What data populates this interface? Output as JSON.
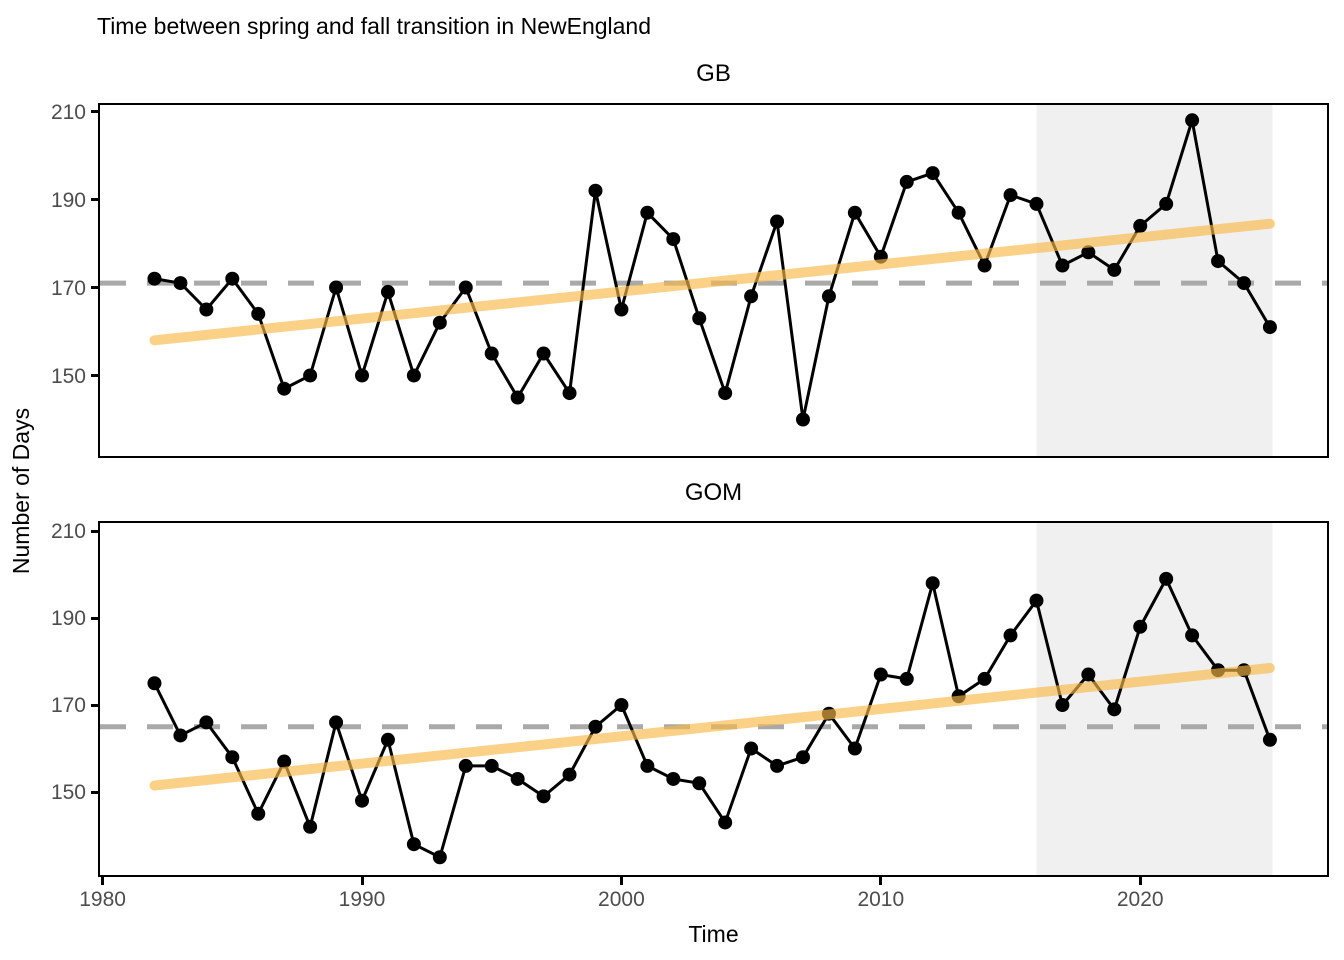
{
  "chart_data": {
    "type": "line",
    "title": "Time between spring and fall transition in NewEngland",
    "xlabel": "Time",
    "ylabel": "Number of Days",
    "x_ticks": [
      1980,
      1990,
      2000,
      2010,
      2020
    ],
    "y_ticks": [
      210,
      190,
      170,
      150
    ],
    "x_domain": [
      1979.9,
      2027.2
    ],
    "y_domain": [
      131,
      212
    ],
    "grid": false,
    "legend": "none",
    "x": [
      1982,
      1983,
      1984,
      1985,
      1986,
      1987,
      1988,
      1989,
      1990,
      1991,
      1992,
      1993,
      1994,
      1995,
      1996,
      1997,
      1998,
      1999,
      2000,
      2001,
      2002,
      2003,
      2004,
      2005,
      2006,
      2007,
      2008,
      2009,
      2010,
      2011,
      2012,
      2013,
      2014,
      2015,
      2016,
      2017,
      2018,
      2019,
      2020,
      2021,
      2022,
      2023,
      2024,
      2025
    ],
    "series": [
      {
        "name": "GB",
        "values": [
          172,
          171,
          165,
          172,
          164,
          147,
          150,
          170,
          150,
          169,
          150,
          162,
          170,
          155,
          145,
          155,
          146,
          192,
          165,
          187,
          181,
          163,
          146,
          168,
          185,
          140,
          168,
          187,
          177,
          194,
          196,
          187,
          175,
          191,
          189,
          175,
          178,
          174,
          184,
          189,
          208,
          176,
          171,
          161
        ],
        "mean_line": 171,
        "trend_start": {
          "x": 1982,
          "y": 158
        },
        "trend_end": {
          "x": 2025,
          "y": 184.5
        }
      },
      {
        "name": "GOM",
        "values": [
          175,
          163,
          166,
          158,
          145,
          157,
          142,
          166,
          148,
          162,
          138,
          135,
          156,
          156,
          153,
          149,
          154,
          165,
          170,
          156,
          153,
          152,
          143,
          160,
          156,
          158,
          168,
          160,
          177,
          176,
          198,
          172,
          176,
          186,
          194,
          170,
          177,
          169,
          188,
          199,
          186,
          178,
          178,
          162
        ],
        "mean_line": 165,
        "trend_start": {
          "x": 1982,
          "y": 151.5
        },
        "trend_end": {
          "x": 2025,
          "y": 178.5
        }
      }
    ],
    "highlight_region": {
      "x_start": 2016,
      "x_end": 2025.1
    },
    "colors": {
      "data_line": "#000000",
      "data_point": "#000000",
      "trend_line": "#F8B846",
      "trend_opacity": 0.65,
      "mean_line": "#A9A9A9",
      "highlight_fill": "#F0F0F0",
      "tick_label": "#4D4D4D",
      "panel_border": "#000000"
    }
  }
}
